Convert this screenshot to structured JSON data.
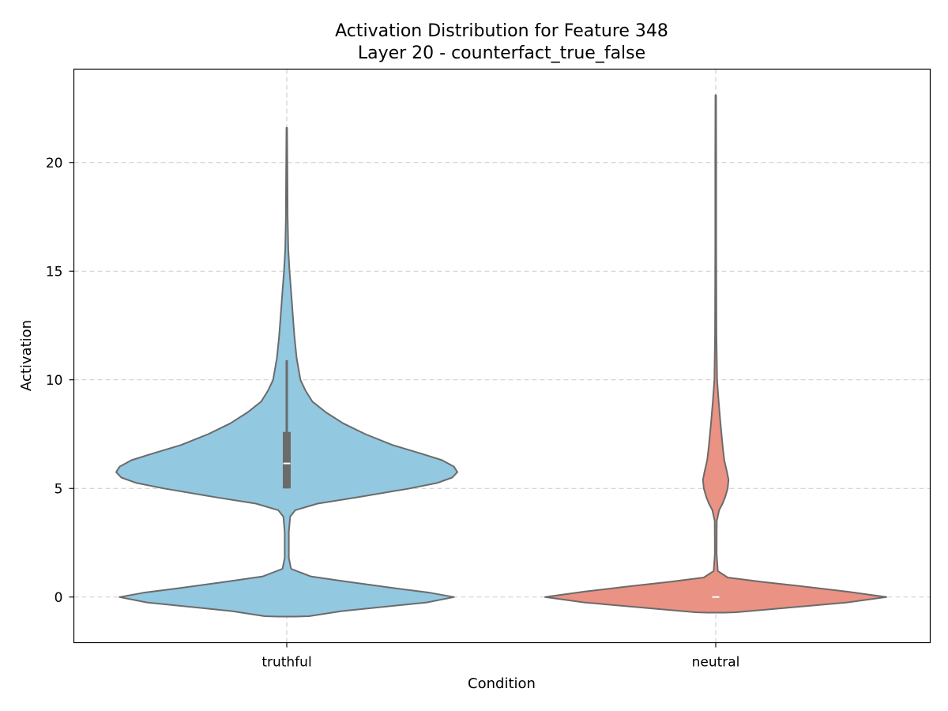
{
  "chart_data": {
    "type": "violin",
    "title": "Activation Distribution for Feature 348",
    "subtitle": "Layer 20 - counterfact_true_false",
    "xlabel": "Condition",
    "ylabel": "Activation",
    "categories": [
      "truthful",
      "neutral"
    ],
    "ylim": [
      -2.1,
      24.3
    ],
    "yticks": [
      0,
      5,
      10,
      15,
      20
    ],
    "grid": true,
    "series": [
      {
        "category": "truthful",
        "color": "#92C8E0",
        "profile": [
          [
            -0.9,
            0.05
          ],
          [
            -0.88,
            0.13
          ],
          [
            -0.65,
            0.32
          ],
          [
            -0.25,
            0.82
          ],
          [
            0.0,
            0.98
          ],
          [
            0.2,
            0.84
          ],
          [
            0.4,
            0.64
          ],
          [
            0.7,
            0.36
          ],
          [
            0.95,
            0.14
          ],
          [
            1.3,
            0.025
          ],
          [
            1.8,
            0.012
          ],
          [
            3.0,
            0.012
          ],
          [
            3.7,
            0.02
          ],
          [
            4.0,
            0.05
          ],
          [
            4.3,
            0.18
          ],
          [
            4.6,
            0.42
          ],
          [
            5.0,
            0.72
          ],
          [
            5.25,
            0.88
          ],
          [
            5.5,
            0.97
          ],
          [
            5.75,
            1.0
          ],
          [
            6.0,
            0.98
          ],
          [
            6.3,
            0.91
          ],
          [
            6.6,
            0.79
          ],
          [
            7.0,
            0.62
          ],
          [
            7.5,
            0.46
          ],
          [
            8.0,
            0.33
          ],
          [
            8.5,
            0.23
          ],
          [
            9.0,
            0.15
          ],
          [
            9.5,
            0.11
          ],
          [
            10.0,
            0.08
          ],
          [
            11.0,
            0.058
          ],
          [
            12.0,
            0.045
          ],
          [
            13.0,
            0.035
          ],
          [
            14.0,
            0.026
          ],
          [
            15.0,
            0.016
          ],
          [
            16.0,
            0.009
          ],
          [
            17.5,
            0.005
          ],
          [
            19.0,
            0.004
          ],
          [
            21.6,
            0.002
          ]
        ],
        "box": {
          "q1": 5.0,
          "q3": 7.6,
          "median": 6.15,
          "whisker_low": 5.0,
          "whisker_high": 10.9
        }
      },
      {
        "category": "neutral",
        "color": "#EA9283",
        "profile": [
          [
            -0.72,
            0.05
          ],
          [
            -0.7,
            0.12
          ],
          [
            -0.5,
            0.41
          ],
          [
            -0.25,
            0.77
          ],
          [
            0.0,
            1.0
          ],
          [
            0.25,
            0.77
          ],
          [
            0.5,
            0.5
          ],
          [
            0.7,
            0.27
          ],
          [
            0.9,
            0.07
          ],
          [
            1.2,
            0.012
          ],
          [
            2.0,
            0.005
          ],
          [
            3.5,
            0.006
          ],
          [
            4.0,
            0.02
          ],
          [
            4.3,
            0.04
          ],
          [
            4.6,
            0.055
          ],
          [
            5.0,
            0.07
          ],
          [
            5.4,
            0.075
          ],
          [
            5.8,
            0.065
          ],
          [
            6.3,
            0.05
          ],
          [
            7.0,
            0.04
          ],
          [
            8.0,
            0.028
          ],
          [
            9.0,
            0.017
          ],
          [
            10.0,
            0.008
          ],
          [
            12.0,
            0.004
          ],
          [
            16.0,
            0.003
          ],
          [
            20.0,
            0.003
          ],
          [
            23.1,
            0.002
          ]
        ],
        "box": {
          "q1": 0.0,
          "q3": 0.0,
          "median": 0.0,
          "whisker_low": 0.0,
          "whisker_high": 0.0
        }
      }
    ]
  }
}
